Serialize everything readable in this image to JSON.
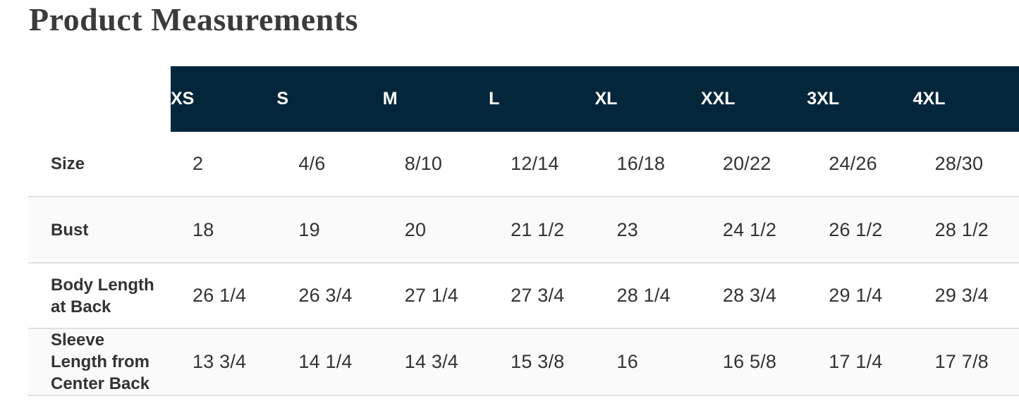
{
  "page": {
    "title": "Product Measurements"
  },
  "colors": {
    "header_bg": "#04263b",
    "header_text": "#ffffff",
    "stripe_bg": "#fafafa",
    "row_border": "#e0e0e0",
    "text": "#333333"
  },
  "table": {
    "columns": [
      "XS",
      "S",
      "M",
      "L",
      "XL",
      "XXL",
      "3XL",
      "4XL"
    ],
    "rows": [
      {
        "label": "Size",
        "values": [
          "2",
          "4/6",
          "8/10",
          "12/14",
          "16/18",
          "20/22",
          "24/26",
          "28/30"
        ]
      },
      {
        "label": "Bust",
        "values": [
          "18",
          "19",
          "20",
          "21 1/2",
          "23",
          "24 1/2",
          "26 1/2",
          "28 1/2"
        ]
      },
      {
        "label": "Body Length at Back",
        "values": [
          "26 1/4",
          "26 3/4",
          "27 1/4",
          "27 3/4",
          "28 1/4",
          "28 3/4",
          "29 1/4",
          "29 3/4"
        ]
      },
      {
        "label": "Sleeve Length from Center Back",
        "values": [
          "13 3/4",
          "14 1/4",
          "14 3/4",
          "15 3/8",
          "16",
          "16 5/8",
          "17 1/4",
          "17 7/8"
        ]
      }
    ]
  }
}
